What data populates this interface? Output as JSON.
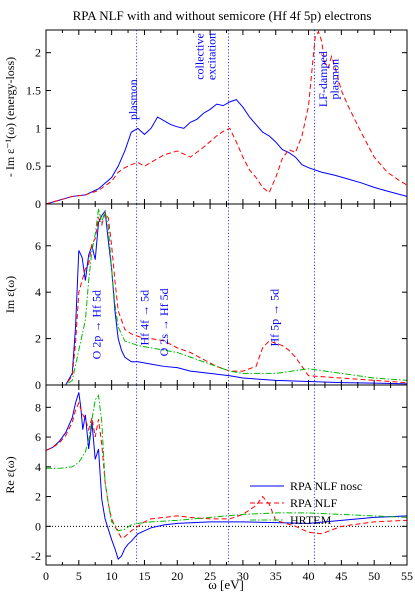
{
  "figure": {
    "title": "RPA NLF with and without semicore (Hf 4f 5p) electrons",
    "xlabel": "ω [eV]",
    "colors": {
      "nosc": "#0000ff",
      "nlf": "#ff0000",
      "hrtem": "#00bb00",
      "vline": "#3333ff",
      "axis": "#000000"
    }
  },
  "chart_data": [
    {
      "type": "line",
      "ylabel": "- Im ε⁻¹(ω) (energy-loss)",
      "xlim": [
        0,
        55
      ],
      "ylim": [
        0,
        2.3
      ],
      "xticks": [
        0,
        5,
        10,
        15,
        20,
        25,
        30,
        35,
        40,
        45,
        50,
        55
      ],
      "yticks": [
        0,
        0.5,
        1,
        1.5,
        2
      ],
      "ytick_labels": [
        "0",
        "0.5",
        "1",
        "1.5",
        "2"
      ],
      "vlines": [
        13.8,
        27.8,
        40.9
      ],
      "annotations": [
        {
          "text": "plasmon",
          "x": 13.9,
          "y": 1.38
        },
        {
          "text": "collective",
          "x": 24.0,
          "y": 1.95
        },
        {
          "text": "excitation",
          "x": 25.8,
          "y": 1.95
        },
        {
          "text": "LF-damped",
          "x": 42.8,
          "y": 1.65
        },
        {
          "text": "plasmon",
          "x": 44.6,
          "y": 1.65
        }
      ],
      "series": [
        {
          "name": "RPA NLF nosc",
          "style": "solid",
          "x": [
            0,
            2,
            4,
            6,
            8,
            10,
            11,
            12,
            13,
            14,
            15,
            16,
            17,
            18,
            19,
            20,
            21,
            22,
            23,
            24,
            25,
            26,
            27,
            28,
            29,
            30,
            31,
            32,
            33,
            34,
            35,
            36,
            37,
            38,
            39,
            40,
            42,
            44,
            46,
            48,
            50,
            52,
            55
          ],
          "y": [
            0,
            0.05,
            0.1,
            0.12,
            0.2,
            0.35,
            0.5,
            0.7,
            0.95,
            1.0,
            0.92,
            1.0,
            1.15,
            1.1,
            1.05,
            1.02,
            1.0,
            1.08,
            1.12,
            1.2,
            1.25,
            1.32,
            1.3,
            1.35,
            1.38,
            1.28,
            1.15,
            1.05,
            0.95,
            0.9,
            0.82,
            0.72,
            0.68,
            0.62,
            0.52,
            0.48,
            0.42,
            0.38,
            0.33,
            0.28,
            0.22,
            0.17,
            0.1
          ]
        },
        {
          "name": "RPA NLF",
          "style": "dashed",
          "x": [
            0,
            2,
            4,
            6,
            8,
            10,
            11,
            12,
            13,
            14,
            15,
            16,
            18,
            20,
            22,
            24,
            26,
            27,
            28,
            29,
            30,
            31,
            32,
            33,
            34,
            35,
            36,
            37,
            38,
            39,
            40,
            41,
            41.5,
            42,
            42.5,
            43,
            43.5,
            44,
            45,
            46,
            48,
            50,
            52,
            54,
            55
          ],
          "y": [
            0,
            0.05,
            0.1,
            0.12,
            0.18,
            0.3,
            0.42,
            0.48,
            0.52,
            0.55,
            0.5,
            0.55,
            0.65,
            0.7,
            0.62,
            0.75,
            0.9,
            0.96,
            1.0,
            0.82,
            0.62,
            0.45,
            0.35,
            0.22,
            0.15,
            0.35,
            0.6,
            0.72,
            0.68,
            0.9,
            1.3,
            2.2,
            2.28,
            2.15,
            1.85,
            1.8,
            1.95,
            1.82,
            1.5,
            1.3,
            0.95,
            0.62,
            0.42,
            0.3,
            0.25
          ]
        }
      ]
    },
    {
      "type": "line",
      "ylabel": "Im ε(ω)",
      "xlim": [
        0,
        55
      ],
      "ylim": [
        0,
        7.8
      ],
      "xticks": [
        0,
        5,
        10,
        15,
        20,
        25,
        30,
        35,
        40,
        45,
        50,
        55
      ],
      "yticks": [
        0,
        2,
        4,
        6
      ],
      "ytick_labels": [
        "0",
        "2",
        "4",
        "6"
      ],
      "vlines": [
        13.8,
        27.8,
        40.9
      ],
      "annotations": [
        {
          "text": "O 2p → Hf 5d",
          "x": 8.3,
          "y": 2.6
        },
        {
          "text": "Hf 4f → 5d",
          "x": 15.6,
          "y": 2.9
        },
        {
          "text": "O 2s → Hf 5d",
          "x": 18.6,
          "y": 2.7
        },
        {
          "text": "Hf 5p → 5d",
          "x": 35.4,
          "y": 2.9
        }
      ],
      "series": [
        {
          "name": "RPA NLF nosc",
          "style": "solid",
          "x": [
            0,
            3,
            4,
            4.5,
            5,
            5.5,
            6,
            6.5,
            7,
            7.5,
            8,
            8.5,
            9,
            9.5,
            10,
            10.5,
            11,
            11.5,
            12,
            13,
            14,
            16,
            18,
            20,
            22,
            25,
            28,
            30,
            35,
            40,
            45,
            50,
            55
          ],
          "y": [
            0,
            0,
            0.5,
            2.5,
            5.8,
            5.5,
            4.5,
            5.6,
            6.0,
            5.4,
            7.0,
            7.3,
            7.5,
            6.2,
            5.0,
            3.2,
            2.0,
            1.5,
            1.2,
            1.0,
            1.0,
            0.9,
            0.8,
            0.75,
            0.6,
            0.5,
            0.4,
            0.3,
            0.2,
            0.15,
            0.1,
            0.08,
            0.05
          ]
        },
        {
          "name": "RPA NLF",
          "style": "dashed",
          "x": [
            0,
            3,
            4,
            4.5,
            5,
            5.5,
            6,
            6.5,
            7,
            7.5,
            8,
            8.5,
            9,
            9.5,
            10,
            10.5,
            11,
            12,
            13,
            14,
            15,
            16,
            18,
            20,
            22,
            24,
            26,
            28,
            30,
            32,
            33,
            34,
            35,
            36,
            37,
            38,
            40,
            45,
            50,
            55
          ],
          "y": [
            0,
            0,
            0.4,
            1.8,
            4.0,
            4.5,
            5.0,
            5.2,
            6.1,
            6.3,
            7.2,
            6.9,
            7.4,
            7.2,
            6.0,
            4.5,
            3.2,
            2.4,
            2.2,
            2.1,
            2.0,
            2.0,
            1.9,
            1.6,
            1.4,
            1.1,
            0.8,
            0.6,
            0.6,
            0.8,
            1.6,
            1.9,
            1.8,
            1.7,
            1.5,
            1.2,
            0.4,
            0.3,
            0.2,
            0.1
          ]
        },
        {
          "name": "HRTEM",
          "style": "dashdot",
          "x": [
            0,
            3,
            4,
            5,
            6,
            6.5,
            7,
            7.5,
            8,
            8.5,
            9,
            9.5,
            10,
            10.5,
            11,
            12,
            13,
            14,
            16,
            18,
            20,
            22,
            25,
            28,
            30,
            35,
            40,
            45,
            50,
            55
          ],
          "y": [
            0,
            0,
            0.2,
            1.5,
            2.8,
            4.5,
            5.8,
            6.5,
            7.6,
            7.0,
            7.5,
            6.8,
            5.0,
            3.5,
            2.5,
            1.9,
            1.8,
            1.7,
            1.6,
            1.5,
            1.4,
            1.2,
            0.9,
            0.6,
            0.5,
            0.5,
            0.7,
            0.5,
            0.3,
            0.2
          ]
        }
      ]
    },
    {
      "type": "line",
      "ylabel": "Re ε(ω)",
      "xlim": [
        0,
        55
      ],
      "ylim": [
        -2.6,
        9.5
      ],
      "xticks": [
        0,
        5,
        10,
        15,
        20,
        25,
        30,
        35,
        40,
        45,
        50,
        55
      ],
      "xtick_labels": [
        "0",
        "5",
        "10",
        "15",
        "20",
        "25",
        "30",
        "35",
        "40",
        "45",
        "50",
        "55"
      ],
      "yticks": [
        -2,
        0,
        2,
        4,
        6,
        8
      ],
      "ytick_labels": [
        "-2",
        "0",
        "2",
        "4",
        "6",
        "8"
      ],
      "vlines": [
        13.8,
        27.8,
        40.9
      ],
      "hline": 0,
      "legend": {
        "position": "center-right",
        "entries": [
          "RPA NLF nosc",
          "RPA NLF",
          "HRTEM"
        ]
      },
      "series": [
        {
          "name": "RPA NLF nosc",
          "style": "solid",
          "x": [
            0,
            1,
            2,
            3,
            4,
            4.5,
            5,
            5.3,
            5.6,
            6,
            6.5,
            7,
            7.5,
            8,
            8.5,
            9,
            9.5,
            10,
            10.5,
            11,
            11.5,
            12,
            12.5,
            13,
            14,
            15,
            16,
            18,
            20,
            25,
            30,
            35,
            40,
            45,
            50,
            55
          ],
          "y": [
            5.1,
            5.3,
            5.7,
            6.3,
            7.3,
            8.3,
            9.0,
            8.0,
            6.5,
            7.5,
            5.2,
            7.0,
            4.5,
            5.2,
            1.8,
            0.5,
            -0.2,
            -0.9,
            -1.5,
            -2.2,
            -2.0,
            -1.5,
            -1.2,
            -1.0,
            -0.5,
            -0.3,
            -0.1,
            0.1,
            0.2,
            0.3,
            0.3,
            0.25,
            0.2,
            0.4,
            0.6,
            0.7
          ]
        },
        {
          "name": "RPA NLF",
          "style": "dashed",
          "x": [
            0,
            1,
            2,
            3,
            4,
            4.5,
            5,
            5.5,
            6,
            6.5,
            7,
            7.5,
            8,
            8.5,
            9,
            9.5,
            10,
            10.5,
            11,
            11.5,
            12,
            13,
            14,
            15,
            16,
            18,
            20,
            22,
            25,
            28,
            30,
            32,
            33,
            34,
            35,
            38,
            40,
            42,
            45,
            50,
            55
          ],
          "y": [
            5.1,
            5.3,
            5.6,
            6.1,
            7.0,
            7.8,
            8.3,
            7.6,
            7.2,
            6.5,
            7.3,
            6.0,
            7.2,
            5.5,
            3.0,
            1.5,
            0.5,
            0.0,
            -0.4,
            -0.8,
            -0.7,
            -0.3,
            0.0,
            0.3,
            0.5,
            0.6,
            0.7,
            0.6,
            0.5,
            0.5,
            0.8,
            1.4,
            2.0,
            1.5,
            0.4,
            0.0,
            -0.4,
            -0.5,
            0.0,
            0.3,
            0.4
          ]
        },
        {
          "name": "HRTEM",
          "style": "dashdot",
          "x": [
            0,
            2,
            4,
            5,
            6,
            6.5,
            7,
            7.5,
            8,
            8.5,
            9,
            9.5,
            10,
            10.5,
            11,
            12,
            13,
            14,
            16,
            20,
            25,
            30,
            35,
            40,
            45,
            50,
            55
          ],
          "y": [
            3.9,
            3.9,
            4.0,
            4.3,
            5.0,
            5.8,
            7.2,
            8.5,
            8.8,
            7.0,
            3.0,
            1.5,
            0.3,
            0.1,
            -0.3,
            -0.2,
            0.1,
            0.2,
            0.3,
            0.4,
            0.6,
            0.8,
            0.9,
            0.9,
            0.8,
            0.7,
            0.6
          ]
        }
      ]
    }
  ]
}
